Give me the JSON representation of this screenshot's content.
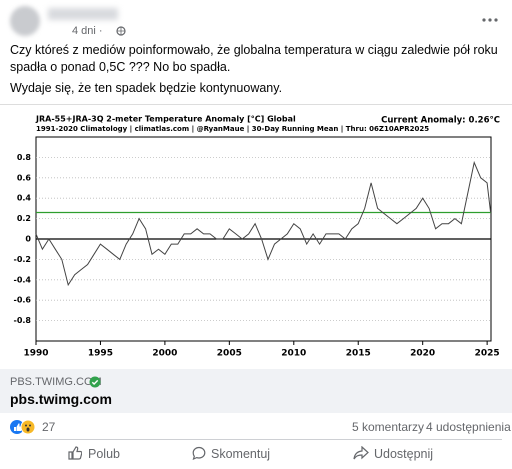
{
  "post": {
    "time": "4 dni ·",
    "paragraphs": [
      "Czy któreś z mediów poinformowało, że globalna temperatura w ciągu zaledwie pół roku spadła o ponad 0,5C ???  No bo spadła.",
      "Wydaje się, że ten spadek będzie kontynuowany."
    ]
  },
  "chart_data": {
    "type": "line",
    "title": "JRA-55+JRA-3Q 2-meter Temperature Anomaly [°C] Global",
    "subtitle": "1991-2020 Climatology | climatlas.com | @RyanMaue | 30-Day Running Mean | Thru: 06Z10APR2025",
    "annotation": "Current Anomaly: 0.26°C",
    "color": "#444444",
    "x": [
      1990,
      1990.5,
      1991,
      1991.5,
      1992,
      1992.5,
      1993,
      1993.5,
      1994,
      1994.5,
      1995,
      1995.5,
      1996,
      1996.5,
      1997,
      1997.5,
      1998,
      1998.5,
      1999,
      1999.5,
      2000,
      2000.5,
      2001,
      2001.5,
      2002,
      2002.5,
      2003,
      2003.5,
      2004,
      2004.5,
      2005,
      2005.5,
      2006,
      2006.5,
      2007,
      2007.5,
      2008,
      2008.5,
      2009,
      2009.5,
      2010,
      2010.5,
      2011,
      2011.5,
      2012,
      2012.5,
      2013,
      2013.5,
      2014,
      2014.5,
      2015,
      2015.5,
      2016,
      2016.5,
      2017,
      2017.5,
      2018,
      2018.5,
      2019,
      2019.5,
      2020,
      2020.5,
      2021,
      2021.5,
      2022,
      2022.5,
      2023,
      2023.5,
      2024,
      2024.5,
      2025,
      2025.27
    ],
    "values": [
      0.05,
      -0.1,
      0.0,
      -0.1,
      -0.2,
      -0.45,
      -0.35,
      -0.3,
      -0.25,
      -0.15,
      -0.05,
      -0.1,
      -0.15,
      -0.2,
      -0.05,
      0.05,
      0.2,
      0.1,
      -0.15,
      -0.1,
      -0.15,
      -0.05,
      -0.05,
      0.05,
      0.05,
      0.1,
      0.05,
      0.05,
      0.0,
      0.0,
      0.1,
      0.05,
      0.0,
      0.05,
      0.15,
      0.0,
      -0.2,
      -0.05,
      0.0,
      0.05,
      0.15,
      0.1,
      -0.05,
      0.05,
      -0.05,
      0.05,
      0.05,
      0.05,
      0.0,
      0.1,
      0.15,
      0.3,
      0.55,
      0.3,
      0.25,
      0.2,
      0.15,
      0.2,
      0.25,
      0.3,
      0.4,
      0.3,
      0.1,
      0.15,
      0.15,
      0.2,
      0.15,
      0.45,
      0.75,
      0.6,
      0.55,
      0.26
    ],
    "hlines": [
      {
        "value": 0,
        "color": "#000000"
      },
      {
        "value": 0.26,
        "color": "#2e9e2e"
      }
    ],
    "xlim": [
      1990,
      2025.3
    ],
    "xticks": [
      1990,
      1995,
      2000,
      2005,
      2010,
      2015,
      2020,
      2025
    ],
    "ylim": [
      -1,
      1
    ],
    "yticks": [
      0.8,
      0.6,
      0.4,
      0.2,
      0,
      -0.2,
      -0.4,
      -0.6,
      -0.8
    ],
    "grid": true
  },
  "link": {
    "domain": "PBS.TWIMG.COM",
    "title": "pbs.twimg.com"
  },
  "stats": {
    "reactions": 27,
    "comments": "5 komentarzy",
    "shares": "4 udostępnienia"
  },
  "actions": [
    "Polub",
    "Skomentuj",
    "Udostępnij"
  ]
}
